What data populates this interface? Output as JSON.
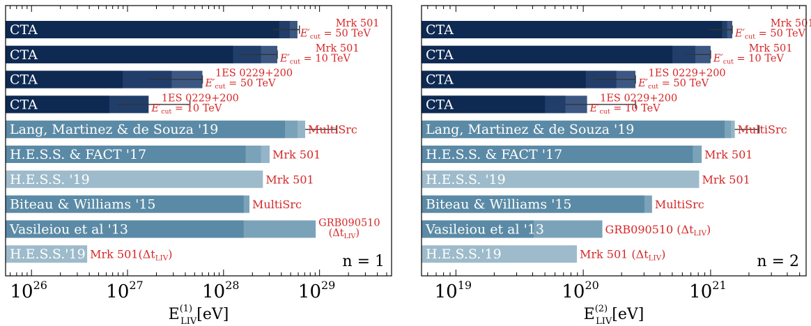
{
  "colors": {
    "cta_dark": "#0f2a52",
    "cta_mid": "#213e6b",
    "cta_light": "#3c5882",
    "cta_lightest": "#5d7599",
    "mid_dark": "#5a8aa5",
    "mid_mid": "#7aa2b8",
    "mid_light": "#93b5c7",
    "pale": "#9ebbcc",
    "annotation": "#d62728",
    "frame": "#000000"
  },
  "chart_data": [
    {
      "type": "bar",
      "orientation": "horizontal",
      "panel_label": "n = 1",
      "xlabel": "E_LIV^(1) [eV]",
      "xlabel_main": "E",
      "xlabel_sub": "LIV",
      "xlabel_sup": "(1)",
      "xlabel_unit": "[eV]",
      "xscale": "log",
      "xlim_log10": [
        25.73,
        29.75
      ],
      "major_ticks": [
        {
          "exp": 26,
          "base": "10",
          "power": "26"
        },
        {
          "exp": 27,
          "base": "10",
          "power": "27"
        },
        {
          "exp": 28,
          "base": "10",
          "power": "28"
        },
        {
          "exp": 29,
          "base": "10",
          "power": "29"
        }
      ],
      "rows": [
        {
          "label": "CTA",
          "style": "cta",
          "segments_log10": [
            28.58,
            28.69,
            28.77
          ],
          "error_log10": [
            28.51,
            28.79
          ],
          "annotation": {
            "lines": [
              {
                "text": "Mrk 501"
              },
              {
                "main": "E′",
                "sub": "cut",
                "rest": " = 50 TeV"
              }
            ]
          }
        },
        {
          "label": "CTA",
          "style": "cta",
          "segments_log10": [
            28.1,
            28.39,
            28.56
          ],
          "error_log10": [
            28.18,
            28.56
          ],
          "annotation": {
            "lines": [
              {
                "text": "Mrk 501"
              },
              {
                "main": "E′",
                "sub": "cut",
                "rest": " = 10 TeV"
              }
            ]
          }
        },
        {
          "label": "CTA",
          "style": "cta",
          "segments_log10": [
            26.95,
            27.46,
            27.78
          ],
          "error_log10": [
            27.22,
            27.78
          ],
          "annotation": {
            "lines": [
              {
                "text": "1ES 0229+200"
              },
              {
                "main": "E′",
                "sub": "cut",
                "rest": " = 50 TeV"
              }
            ]
          }
        },
        {
          "label": "CTA",
          "style": "cta",
          "segments_log10": [
            26.81,
            27.22
          ],
          "error_log10": [
            26.9,
            27.65
          ],
          "annotation": {
            "lines": [
              {
                "text": "1ES 0229+200"
              },
              {
                "main": "E′",
                "sub": "cut",
                "rest": " = 10 TeV"
              }
            ]
          }
        },
        {
          "label": "Lang, Martinez & de Souza '19",
          "style": "mid",
          "segments_log10": [
            28.64,
            28.77,
            28.85
          ],
          "error_log10": [
            28.85,
            29.18
          ],
          "annotation": {
            "lines": [
              {
                "text": "MultiSrc"
              }
            ]
          }
        },
        {
          "label": "H.E.S.S. & FACT '17",
          "style": "mid",
          "segments_log10": [
            28.23,
            28.39,
            28.48
          ],
          "annotation": {
            "lines": [
              {
                "text": "Mrk 501"
              }
            ]
          }
        },
        {
          "label": "H.E.S.S. '19",
          "style": "pale",
          "segments_log10": [
            28.41
          ],
          "annotation": {
            "lines": [
              {
                "text": "Mrk 501"
              }
            ]
          }
        },
        {
          "label": "Biteau & Williams '15",
          "style": "mid",
          "segments_log10": [
            28.21,
            28.27
          ],
          "annotation": {
            "lines": [
              {
                "text": "MultiSrc"
              }
            ]
          }
        },
        {
          "label": "Vasileiou et al '13",
          "style": "mid",
          "segments_log10": [
            28.21,
            28.96
          ],
          "annotation": {
            "lines": [
              {
                "text": "GRB090510"
              },
              {
                "pre": "(Δt",
                "sub": "LIV",
                "rest": ")"
              }
            ]
          }
        },
        {
          "label": "H.E.S.S.'19",
          "style": "pale",
          "segments_log10": [
            26.58
          ],
          "annotation": {
            "lines": [
              {
                "pre": "Mrk 501(Δt",
                "sub": "LIV",
                "rest": ")"
              }
            ]
          }
        }
      ]
    },
    {
      "type": "bar",
      "orientation": "horizontal",
      "panel_label": "n = 2",
      "xlabel": "E_LIV^(2) [eV]",
      "xlabel_main": "E",
      "xlabel_sub": "LIV",
      "xlabel_sup": "(2)",
      "xlabel_unit": "[eV]",
      "xscale": "log",
      "xlim_log10": [
        18.73,
        21.75
      ],
      "major_ticks": [
        {
          "exp": 19,
          "base": "10",
          "power": "19"
        },
        {
          "exp": 20,
          "base": "10",
          "power": "20"
        },
        {
          "exp": 21,
          "base": "10",
          "power": "21"
        }
      ],
      "rows": [
        {
          "label": "CTA",
          "style": "cta",
          "segments_log10": [
            21.09,
            21.13,
            21.17
          ],
          "error_log10": [
            20.98,
            21.17
          ],
          "annotation": {
            "lines": [
              {
                "text": "Mrk 501"
              },
              {
                "main": "E′",
                "sub": "cut",
                "rest": " = 50 TeV"
              }
            ]
          }
        },
        {
          "label": "CTA",
          "style": "cta",
          "segments_log10": [
            20.7,
            20.88,
            21.0
          ],
          "error_log10": [
            20.8,
            21.0
          ],
          "annotation": {
            "lines": [
              {
                "text": "Mrk 501"
              },
              {
                "main": "E′",
                "sub": "cut",
                "rest": " = 10 TeV"
              }
            ]
          }
        },
        {
          "label": "CTA",
          "style": "cta",
          "segments_log10": [
            20.02,
            20.26,
            20.41
          ],
          "error_log10": [
            20.08,
            20.41
          ],
          "annotation": {
            "lines": [
              {
                "text": "1ES 0229+200"
              },
              {
                "main": "E′",
                "sub": "cut",
                "rest": " = 50 TeV"
              }
            ]
          }
        },
        {
          "label": "CTA",
          "style": "cta",
          "segments_log10": [
            19.7,
            19.86,
            20.03
          ],
          "error_log10": [
            19.86,
            20.41
          ],
          "annotation": {
            "lines": [
              {
                "text": "1ES 0229+200"
              },
              {
                "main": "E′",
                "sub": "cut",
                "rest": " = 10 TeV"
              }
            ]
          }
        },
        {
          "label": "Lang, Martinez & de Souza '19",
          "style": "mid",
          "segments_log10": [
            21.11,
            21.16,
            21.19
          ],
          "error_log10": [
            21.19,
            21.38
          ],
          "annotation": {
            "lines": [
              {
                "text": "MultiSrc"
              }
            ]
          }
        },
        {
          "label": "H.E.S.S. & FACT '17",
          "style": "mid",
          "segments_log10": [
            20.86,
            20.93
          ],
          "annotation": {
            "lines": [
              {
                "text": "Mrk 501"
              }
            ]
          }
        },
        {
          "label": "H.E.S.S. '19",
          "style": "pale",
          "segments_log10": [
            20.91
          ],
          "annotation": {
            "lines": [
              {
                "text": "Mrk 501"
              }
            ]
          }
        },
        {
          "label": "Biteau & Williams '15",
          "style": "mid",
          "segments_log10": [
            20.48,
            20.54
          ],
          "annotation": {
            "lines": [
              {
                "text": "MultiSrc"
              }
            ]
          }
        },
        {
          "label": "Vasileiou et al '13",
          "style": "mid",
          "segments_log10": [
            19.61,
            20.15
          ],
          "annotation": {
            "lines": [
              {
                "pre": "GRB090510 (Δt",
                "sub": "LIV",
                "rest": ")"
              }
            ]
          }
        },
        {
          "label": "H.E.S.S.'19",
          "style": "pale",
          "segments_log10": [
            19.95
          ],
          "annotation": {
            "lines": [
              {
                "pre": "Mrk 501 (Δt",
                "sub": "LIV",
                "rest": ")"
              }
            ]
          }
        }
      ]
    }
  ]
}
